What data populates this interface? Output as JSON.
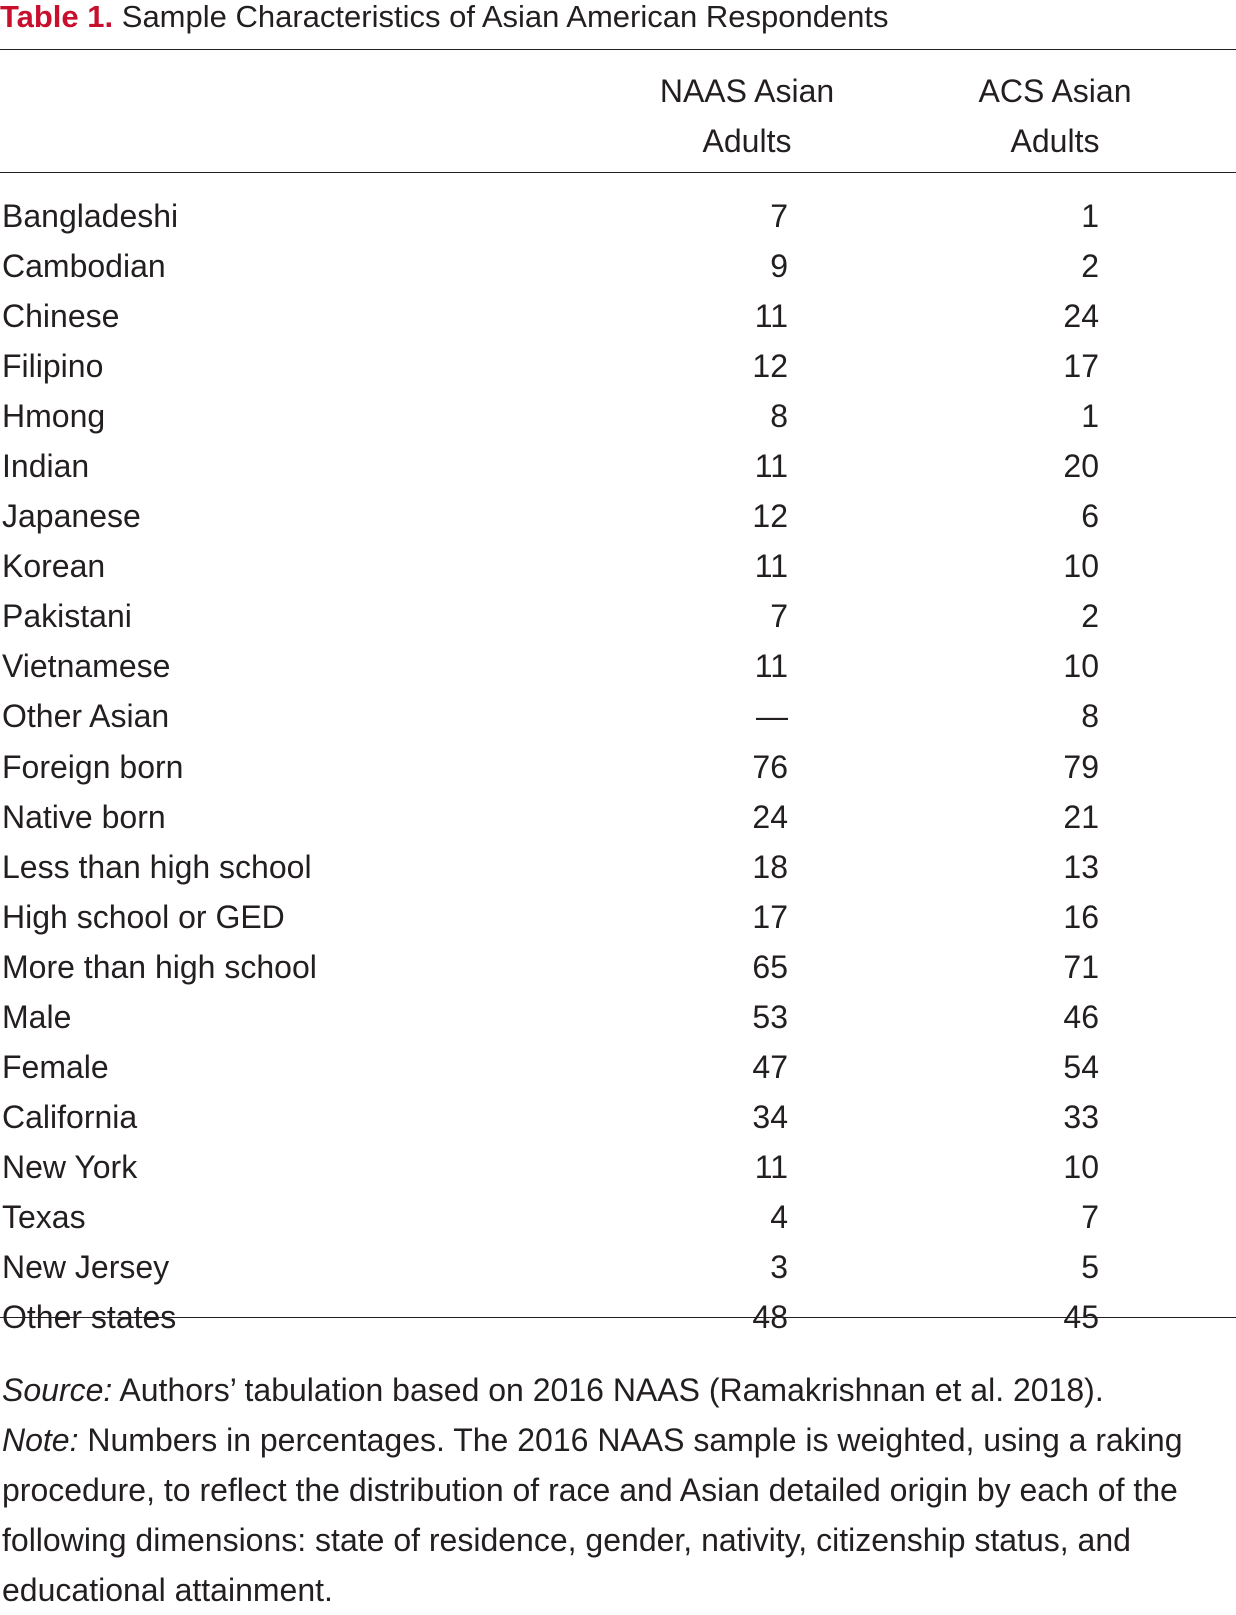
{
  "title": {
    "label": "Table 1.",
    "text": "Sample Characteristics of Asian American Respondents"
  },
  "columns": [
    {
      "line1": "NAAS Asian",
      "line2": "Adults"
    },
    {
      "line1": "ACS Asian",
      "line2": "Adults"
    }
  ],
  "rows": [
    {
      "category": "Bangladeshi",
      "naas": "7",
      "acs": "1"
    },
    {
      "category": "Cambodian",
      "naas": "9",
      "acs": "2"
    },
    {
      "category": "Chinese",
      "naas": "11",
      "acs": "24"
    },
    {
      "category": "Filipino",
      "naas": "12",
      "acs": "17"
    },
    {
      "category": "Hmong",
      "naas": "8",
      "acs": "1"
    },
    {
      "category": "Indian",
      "naas": "11",
      "acs": "20"
    },
    {
      "category": "Japanese",
      "naas": "12",
      "acs": "6"
    },
    {
      "category": "Korean",
      "naas": "11",
      "acs": "10"
    },
    {
      "category": "Pakistani",
      "naas": "7",
      "acs": "2"
    },
    {
      "category": "Vietnamese",
      "naas": "11",
      "acs": "10"
    },
    {
      "category": "Other Asian",
      "naas": "—",
      "acs": "8"
    },
    {
      "category": "Foreign born",
      "naas": "76",
      "acs": "79"
    },
    {
      "category": "Native born",
      "naas": "24",
      "acs": "21"
    },
    {
      "category": "Less than high school",
      "naas": "18",
      "acs": "13"
    },
    {
      "category": "High school or GED",
      "naas": "17",
      "acs": "16"
    },
    {
      "category": "More than high school",
      "naas": "65",
      "acs": "71"
    },
    {
      "category": "Male",
      "naas": "53",
      "acs": "46"
    },
    {
      "category": "Female",
      "naas": "47",
      "acs": "54"
    },
    {
      "category": "California",
      "naas": "34",
      "acs": "33"
    },
    {
      "category": "New York",
      "naas": "11",
      "acs": "10"
    },
    {
      "category": "Texas",
      "naas": "4",
      "acs": "7"
    },
    {
      "category": "New Jersey",
      "naas": "3",
      "acs": "5"
    },
    {
      "category": "Other states",
      "naas": "48",
      "acs": "45"
    }
  ],
  "notes": {
    "source_label": "Source:",
    "source_text": " Authors’ tabulation based on 2016 NAAS (Ramakrishnan et al. 2018).",
    "note_label": "Note:",
    "note_text": " Numbers in percentages. The 2016 NAAS sample is weighted, using a raking procedure, to reflect the distribution of race and Asian detailed origin by each of the following dimensions: state of residence, gender, nativity, citizenship status, and educational attainment."
  }
}
